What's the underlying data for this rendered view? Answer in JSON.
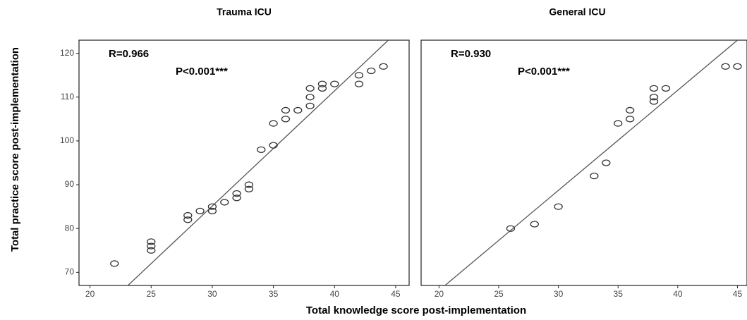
{
  "ylabel": "Total practice score post-implementation",
  "xlabel": "Total knowledge score post-implementation",
  "chart_data": [
    {
      "type": "scatter",
      "title": "Trauma ICU",
      "annotations": [
        "R=0.966",
        "P<0.001***"
      ],
      "xlim": [
        19.1,
        46.1
      ],
      "ylim": [
        67,
        123
      ],
      "xticks": [
        20,
        25,
        30,
        35,
        40,
        45
      ],
      "yticks": [
        70,
        80,
        90,
        100,
        110,
        120
      ],
      "color": "#333333",
      "x": [
        22,
        25,
        25,
        25,
        28,
        28,
        29,
        30,
        30,
        31,
        32,
        32,
        33,
        33,
        34,
        35,
        35,
        36,
        36,
        37,
        38,
        38,
        38,
        39,
        39,
        40,
        42,
        42,
        43,
        44
      ],
      "y": [
        72,
        77,
        76,
        75,
        83,
        82,
        84,
        85,
        84,
        86,
        88,
        87,
        90,
        89,
        98,
        99,
        104,
        107,
        105,
        107,
        112,
        110,
        108,
        113,
        112,
        113,
        115,
        113,
        116,
        117
      ],
      "fit": {
        "x": [
          23.1,
          44.4
        ],
        "y": [
          67,
          123
        ]
      }
    },
    {
      "type": "scatter",
      "title": "General ICU",
      "annotations": [
        "R=0.930",
        "P<0.001***"
      ],
      "xlim": [
        18.5,
        45.8
      ],
      "ylim": [
        67,
        123
      ],
      "xticks": [
        20,
        25,
        30,
        35,
        40,
        45
      ],
      "color": "#333333",
      "x": [
        26,
        28,
        30,
        33,
        34,
        35,
        36,
        36,
        38,
        38,
        38,
        39,
        44,
        45
      ],
      "y": [
        80,
        81,
        85,
        92,
        95,
        104,
        107,
        105,
        112,
        110,
        109,
        112,
        117,
        117
      ],
      "fit": {
        "x": [
          20.5,
          45.0
        ],
        "y": [
          67,
          123
        ]
      }
    }
  ]
}
